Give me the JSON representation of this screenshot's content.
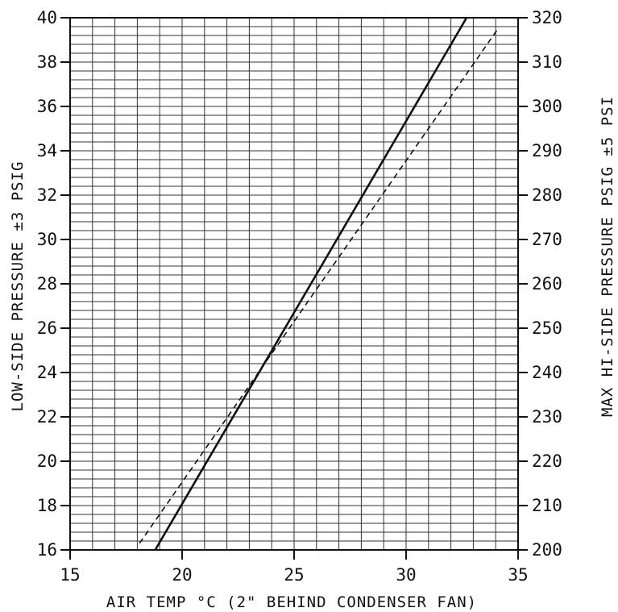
{
  "chart_data": {
    "type": "line",
    "xlabel": "AIR TEMP °C (2\" BEHIND CONDENSER FAN)",
    "ylabel": "LOW-SIDE PRESSURE ±3 PSIG",
    "y2label": "MAX HI-SIDE PRESSURE PSIG ±5 PSI",
    "xlim": [
      15,
      35
    ],
    "ylim": [
      16,
      40
    ],
    "y2lim": [
      200,
      320
    ],
    "x_ticks": [
      "15",
      "20",
      "25",
      "30",
      "35"
    ],
    "y_ticks": [
      "16",
      "18",
      "20",
      "22",
      "24",
      "26",
      "28",
      "30",
      "32",
      "34",
      "36",
      "38",
      "40"
    ],
    "y2_ticks": [
      "200",
      "210",
      "220",
      "230",
      "240",
      "250",
      "260",
      "270",
      "280",
      "290",
      "300",
      "310",
      "320"
    ],
    "grid": true,
    "series": [
      {
        "style": "solid",
        "axis": "left",
        "x": [
          18.8,
          32.7
        ],
        "y": [
          16,
          40
        ]
      },
      {
        "style": "dashed",
        "axis": "right",
        "x": [
          18.1,
          34.1
        ],
        "y": [
          201.5,
          317.5
        ]
      }
    ],
    "colors": {
      "ink": "#111111",
      "grid": "#333333",
      "background": "#ffffff"
    }
  }
}
